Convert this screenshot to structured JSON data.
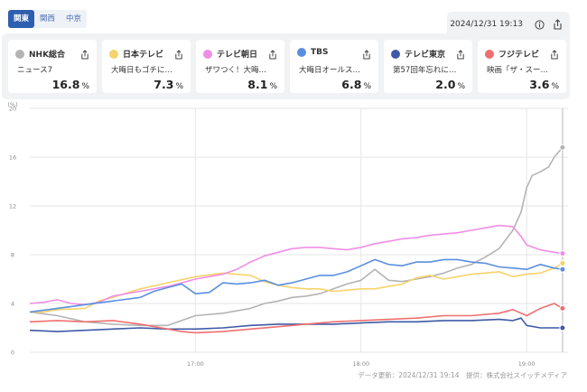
{
  "region_tabs": [
    {
      "label": "関東",
      "active": true
    },
    {
      "label": "関西",
      "active": false
    },
    {
      "label": "中京",
      "active": false
    }
  ],
  "header": {
    "datetime": "2024/12/31 19:13",
    "info_icon": "info-icon",
    "share_icon": "share-icon"
  },
  "stations": [
    {
      "name": "NHK総合",
      "program": "ニュース7",
      "rating": "16.8",
      "unit": "%",
      "color": "#b4b4b4"
    },
    {
      "name": "日本テレビ",
      "program": "大晦日もゴチに…",
      "rating": "7.3",
      "unit": "%",
      "color": "#f6d36b"
    },
    {
      "name": "テレビ朝日",
      "program": "ザワつく！大晦…",
      "rating": "8.1",
      "unit": "%",
      "color": "#ef8ee6"
    },
    {
      "name": "TBS",
      "program": "大晦日オールス…",
      "rating": "6.8",
      "unit": "%",
      "color": "#5a8fe0"
    },
    {
      "name": "テレビ東京",
      "program": "第57回年忘れに…",
      "rating": "2.0",
      "unit": "%",
      "color": "#3e5aa6"
    },
    {
      "name": "フジテレビ",
      "program": "映画「ザ・スー…",
      "rating": "3.6",
      "unit": "%",
      "color": "#ef6f6f"
    }
  ],
  "footer": "データ更新：2024/12/31 19:14　提供：株式会社スイッチメディア",
  "chart_data": {
    "type": "line",
    "ylabel": "(%)",
    "ylim": [
      0,
      20
    ],
    "yticks": [
      "0",
      "4",
      "8",
      "12",
      "16",
      "20"
    ],
    "xlim_minutes": [
      960,
      1155
    ],
    "xticks": [
      {
        "label": "17:00",
        "minute": 1020
      },
      {
        "label": "18:00",
        "minute": 1080
      },
      {
        "label": "19:00",
        "minute": 1140
      }
    ],
    "current_minute": 1153,
    "grid": true,
    "series": [
      {
        "name": "NHK総合",
        "color": "#b4b4b4",
        "x": [
          960,
          970,
          980,
          990,
          1000,
          1010,
          1020,
          1030,
          1040,
          1045,
          1050,
          1055,
          1060,
          1065,
          1070,
          1075,
          1080,
          1085,
          1090,
          1095,
          1100,
          1105,
          1110,
          1115,
          1120,
          1125,
          1130,
          1135,
          1138,
          1140,
          1142,
          1145,
          1148,
          1150,
          1153
        ],
        "y": [
          3.3,
          3.0,
          2.5,
          2.3,
          2.2,
          2.2,
          3.0,
          3.2,
          3.6,
          4.0,
          4.2,
          4.5,
          4.6,
          4.8,
          5.2,
          5.6,
          5.9,
          6.8,
          5.9,
          5.8,
          6.0,
          6.2,
          6.5,
          6.9,
          7.2,
          7.8,
          8.5,
          10.0,
          11.5,
          13.5,
          14.5,
          14.8,
          15.2,
          16.0,
          16.8
        ]
      },
      {
        "name": "日本テレビ",
        "color": "#f6d36b",
        "x": [
          960,
          965,
          970,
          980,
          985,
          990,
          1000,
          1010,
          1020,
          1030,
          1040,
          1045,
          1050,
          1055,
          1060,
          1065,
          1070,
          1075,
          1080,
          1085,
          1090,
          1095,
          1100,
          1105,
          1110,
          1115,
          1120,
          1125,
          1130,
          1135,
          1140,
          1145,
          1150,
          1153
        ],
        "y": [
          3.3,
          3.3,
          3.5,
          3.6,
          4.2,
          4.5,
          5.2,
          5.7,
          6.2,
          6.5,
          6.3,
          5.8,
          5.5,
          5.3,
          5.2,
          5.2,
          5.0,
          5.1,
          5.2,
          5.2,
          5.4,
          5.6,
          6.1,
          6.3,
          6.0,
          6.2,
          6.4,
          6.5,
          6.6,
          6.2,
          6.4,
          6.5,
          6.9,
          7.3
        ]
      },
      {
        "name": "テレビ朝日",
        "color": "#ef8ee6",
        "x": [
          960,
          965,
          970,
          975,
          980,
          985,
          990,
          1000,
          1010,
          1020,
          1030,
          1035,
          1040,
          1045,
          1050,
          1055,
          1060,
          1065,
          1070,
          1075,
          1080,
          1085,
          1090,
          1095,
          1100,
          1105,
          1110,
          1115,
          1120,
          1125,
          1130,
          1135,
          1138,
          1140,
          1145,
          1150,
          1153
        ],
        "y": [
          4.0,
          4.1,
          4.3,
          4.0,
          3.9,
          4.1,
          4.6,
          5.0,
          5.4,
          6.0,
          6.4,
          6.8,
          7.4,
          7.9,
          8.2,
          8.5,
          8.6,
          8.6,
          8.5,
          8.4,
          8.6,
          8.9,
          9.1,
          9.3,
          9.4,
          9.6,
          9.7,
          9.8,
          10.0,
          10.2,
          10.4,
          10.3,
          9.5,
          8.8,
          8.4,
          8.2,
          8.1
        ]
      },
      {
        "name": "TBS",
        "color": "#5a8fe0",
        "x": [
          960,
          970,
          980,
          990,
          1000,
          1005,
          1010,
          1015,
          1020,
          1025,
          1030,
          1035,
          1040,
          1045,
          1050,
          1055,
          1060,
          1065,
          1070,
          1075,
          1080,
          1085,
          1090,
          1095,
          1100,
          1105,
          1110,
          1115,
          1120,
          1125,
          1130,
          1135,
          1140,
          1145,
          1150,
          1153
        ],
        "y": [
          3.3,
          3.6,
          3.9,
          4.2,
          4.5,
          5.0,
          5.3,
          5.6,
          4.8,
          4.9,
          5.7,
          5.6,
          5.7,
          5.9,
          5.5,
          5.7,
          6.0,
          6.3,
          6.3,
          6.6,
          7.1,
          7.6,
          7.2,
          7.1,
          7.4,
          7.4,
          7.6,
          7.6,
          7.4,
          7.3,
          7.0,
          6.9,
          6.8,
          7.2,
          6.9,
          6.8
        ]
      },
      {
        "name": "テレビ東京",
        "color": "#3e5aa6",
        "x": [
          960,
          970,
          980,
          990,
          1000,
          1010,
          1020,
          1030,
          1040,
          1050,
          1060,
          1070,
          1080,
          1090,
          1100,
          1110,
          1120,
          1130,
          1135,
          1138,
          1140,
          1145,
          1150,
          1153
        ],
        "y": [
          1.8,
          1.7,
          1.8,
          1.9,
          2.0,
          1.9,
          1.9,
          2.0,
          2.2,
          2.3,
          2.3,
          2.3,
          2.4,
          2.5,
          2.5,
          2.6,
          2.6,
          2.7,
          2.6,
          2.8,
          2.2,
          2.0,
          2.0,
          2.0
        ]
      },
      {
        "name": "フジテレビ",
        "color": "#ef6f6f",
        "x": [
          960,
          970,
          980,
          990,
          1000,
          1010,
          1015,
          1020,
          1030,
          1040,
          1050,
          1060,
          1070,
          1080,
          1090,
          1100,
          1110,
          1120,
          1130,
          1135,
          1140,
          1145,
          1150,
          1153
        ],
        "y": [
          2.5,
          2.6,
          2.5,
          2.6,
          2.3,
          1.9,
          1.7,
          1.6,
          1.7,
          1.9,
          2.1,
          2.3,
          2.5,
          2.6,
          2.7,
          2.8,
          3.0,
          3.0,
          3.2,
          3.5,
          3.0,
          3.6,
          4.0,
          3.6
        ]
      }
    ]
  }
}
